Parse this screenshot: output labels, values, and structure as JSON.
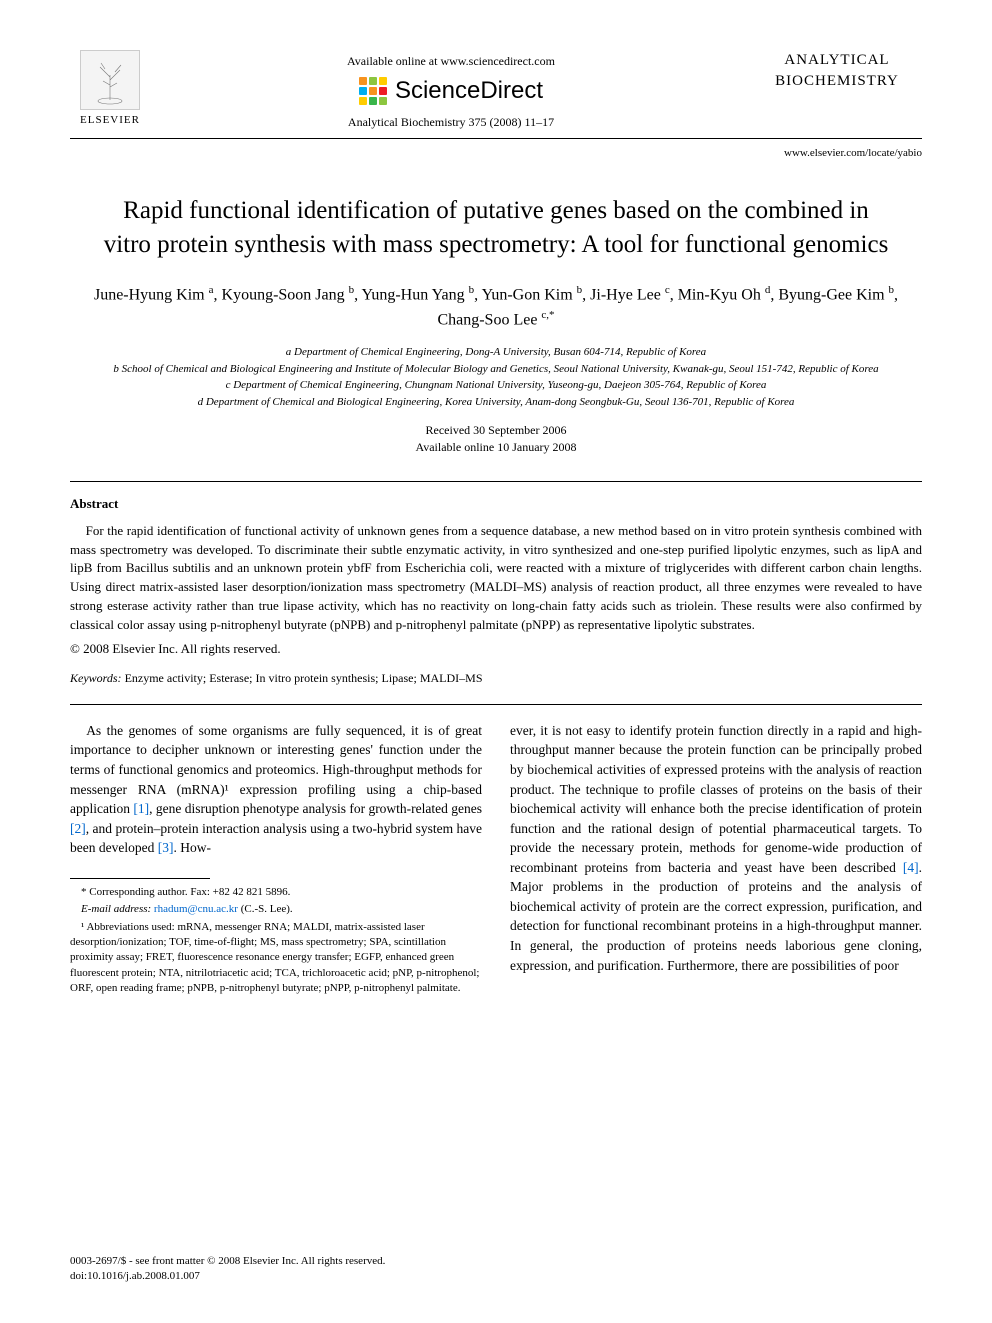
{
  "header": {
    "publisher_label": "ELSEVIER",
    "available_text": "Available online at www.sciencedirect.com",
    "sd_brand": "ScienceDirect",
    "sd_dot_colors": [
      "#f7931e",
      "#8cc63f",
      "#ffcc00",
      "#00aeef",
      "#f7931e",
      "#ed1c24",
      "#ffcc00",
      "#39b54a",
      "#8cc63f"
    ],
    "journal_ref": "Analytical Biochemistry 375 (2008) 11–17",
    "journal_title": "ANALYTICAL BIOCHEMISTRY",
    "locate_url": "www.elsevier.com/locate/yabio"
  },
  "article": {
    "title": "Rapid functional identification of putative genes based on the combined in vitro protein synthesis with mass spectrometry: A tool for functional genomics",
    "authors_html": "June-Hyung Kim <sup>a</sup>, Kyoung-Soon Jang <sup>b</sup>, Yung-Hun Yang <sup>b</sup>, Yun-Gon Kim <sup>b</sup>, Ji-Hye Lee <sup>c</sup>, Min-Kyu Oh <sup>d</sup>, Byung-Gee Kim <sup>b</sup>, Chang-Soo Lee <sup>c,*</sup>",
    "affiliations": [
      "a Department of Chemical Engineering, Dong-A University, Busan 604-714, Republic of Korea",
      "b School of Chemical and Biological Engineering and Institute of Molecular Biology and Genetics, Seoul National University, Kwanak-gu, Seoul 151-742, Republic of Korea",
      "c Department of Chemical Engineering, Chungnam National University, Yuseong-gu, Daejeon 305-764, Republic of Korea",
      "d Department of Chemical and Biological Engineering, Korea University, Anam-dong Seongbuk-Gu, Seoul 136-701, Republic of Korea"
    ],
    "received": "Received 30 September 2006",
    "available": "Available online 10 January 2008"
  },
  "abstract": {
    "label": "Abstract",
    "text": "For the rapid identification of functional activity of unknown genes from a sequence database, a new method based on in vitro protein synthesis combined with mass spectrometry was developed. To discriminate their subtle enzymatic activity, in vitro synthesized and one-step purified lipolytic enzymes, such as lipA and lipB from Bacillus subtilis and an unknown protein ybfF from Escherichia coli, were reacted with a mixture of triglycerides with different carbon chain lengths. Using direct matrix-assisted laser desorption/ionization mass spectrometry (MALDI–MS) analysis of reaction product, all three enzymes were revealed to have strong esterase activity rather than true lipase activity, which has no reactivity on long-chain fatty acids such as triolein. These results were also confirmed by classical color assay using p-nitrophenyl butyrate (pNPB) and p-nitrophenyl palmitate (pNPP) as representative lipolytic substrates.",
    "copyright": "© 2008 Elsevier Inc. All rights reserved."
  },
  "keywords": {
    "label": "Keywords:",
    "text": "Enzyme activity; Esterase; In vitro protein synthesis; Lipase; MALDI–MS"
  },
  "body": {
    "col1_para": "As the genomes of some organisms are fully sequenced, it is of great importance to decipher unknown or interesting genes' function under the terms of functional genomics and proteomics. High-throughput methods for messenger RNA (mRNA)¹ expression profiling using a chip-based application [1], gene disruption phenotype analysis for growth-related genes [2], and protein–protein interaction analysis using a two-hybrid system have been developed [3]. How-",
    "col2_para": "ever, it is not easy to identify protein function directly in a rapid and high-throughput manner because the protein function can be principally probed by biochemical activities of expressed proteins with the analysis of reaction product. The technique to profile classes of proteins on the basis of their biochemical activity will enhance both the precise identification of protein function and the rational design of potential pharmaceutical targets. To provide the necessary protein, methods for genome-wide production of recombinant proteins from bacteria and yeast have been described [4]. Major problems in the production of proteins and the analysis of biochemical activity of protein are the correct expression, purification, and detection for functional recombinant proteins in a high-throughput manner. In general, the production of proteins needs laborious gene cloning, expression, and purification. Furthermore, there are possibilities of poor"
  },
  "footnotes": {
    "corresponding": "* Corresponding author. Fax: +82 42 821 5896.",
    "email_label": "E-mail address:",
    "email": "rhadum@cnu.ac.kr",
    "email_suffix": "(C.-S. Lee).",
    "abbrev": "¹ Abbreviations used: mRNA, messenger RNA; MALDI, matrix-assisted laser desorption/ionization; TOF, time-of-flight; MS, mass spectrometry; SPA, scintillation proximity assay; FRET, fluorescence resonance energy transfer; EGFP, enhanced green fluorescent protein; NTA, nitrilotriacetic acid; TCA, trichloroacetic acid; pNP, p-nitrophenol; ORF, open reading frame; pNPB, p-nitrophenyl butyrate; pNPP, p-nitrophenyl palmitate."
  },
  "footer": {
    "line1": "0003-2697/$ - see front matter © 2008 Elsevier Inc. All rights reserved.",
    "line2": "doi:10.1016/j.ab.2008.01.007"
  }
}
